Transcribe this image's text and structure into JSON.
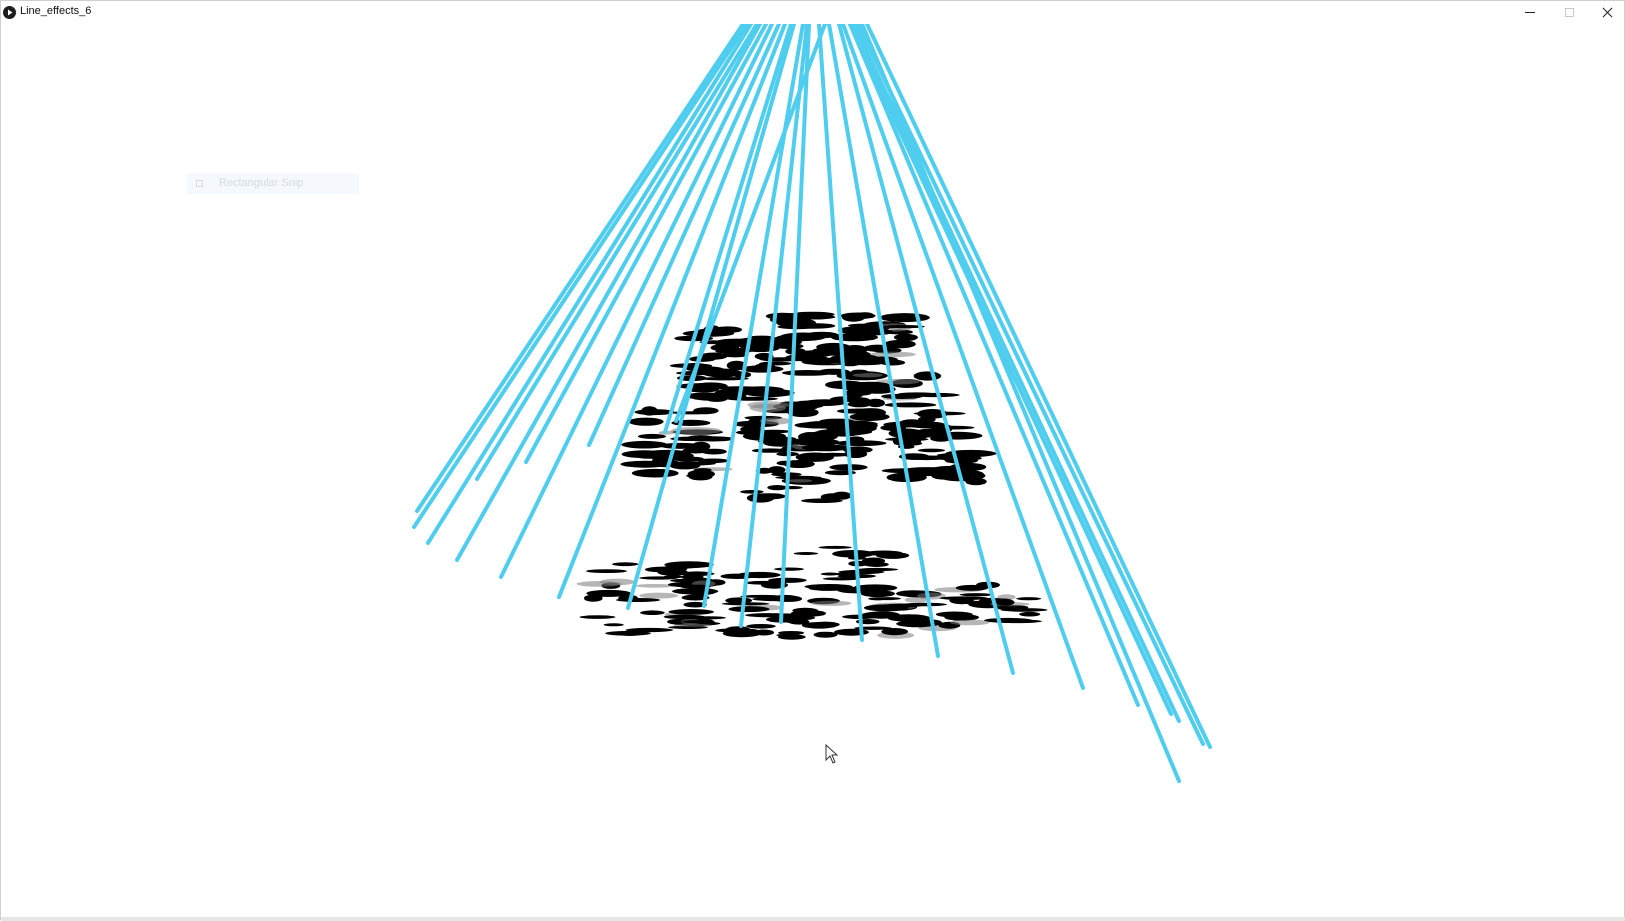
{
  "window": {
    "title": "Line_effects_6"
  },
  "snip_ghost": {
    "label": "Rectangular Snip"
  },
  "colors": {
    "line": "#4fcdef",
    "blob": "#000000",
    "background": "#ffffff"
  },
  "icons": {
    "app": "play-icon",
    "minimize": "minimize-icon",
    "maximize": "maximize-icon",
    "close": "close-icon",
    "cursor": "mouse-pointer-icon"
  }
}
